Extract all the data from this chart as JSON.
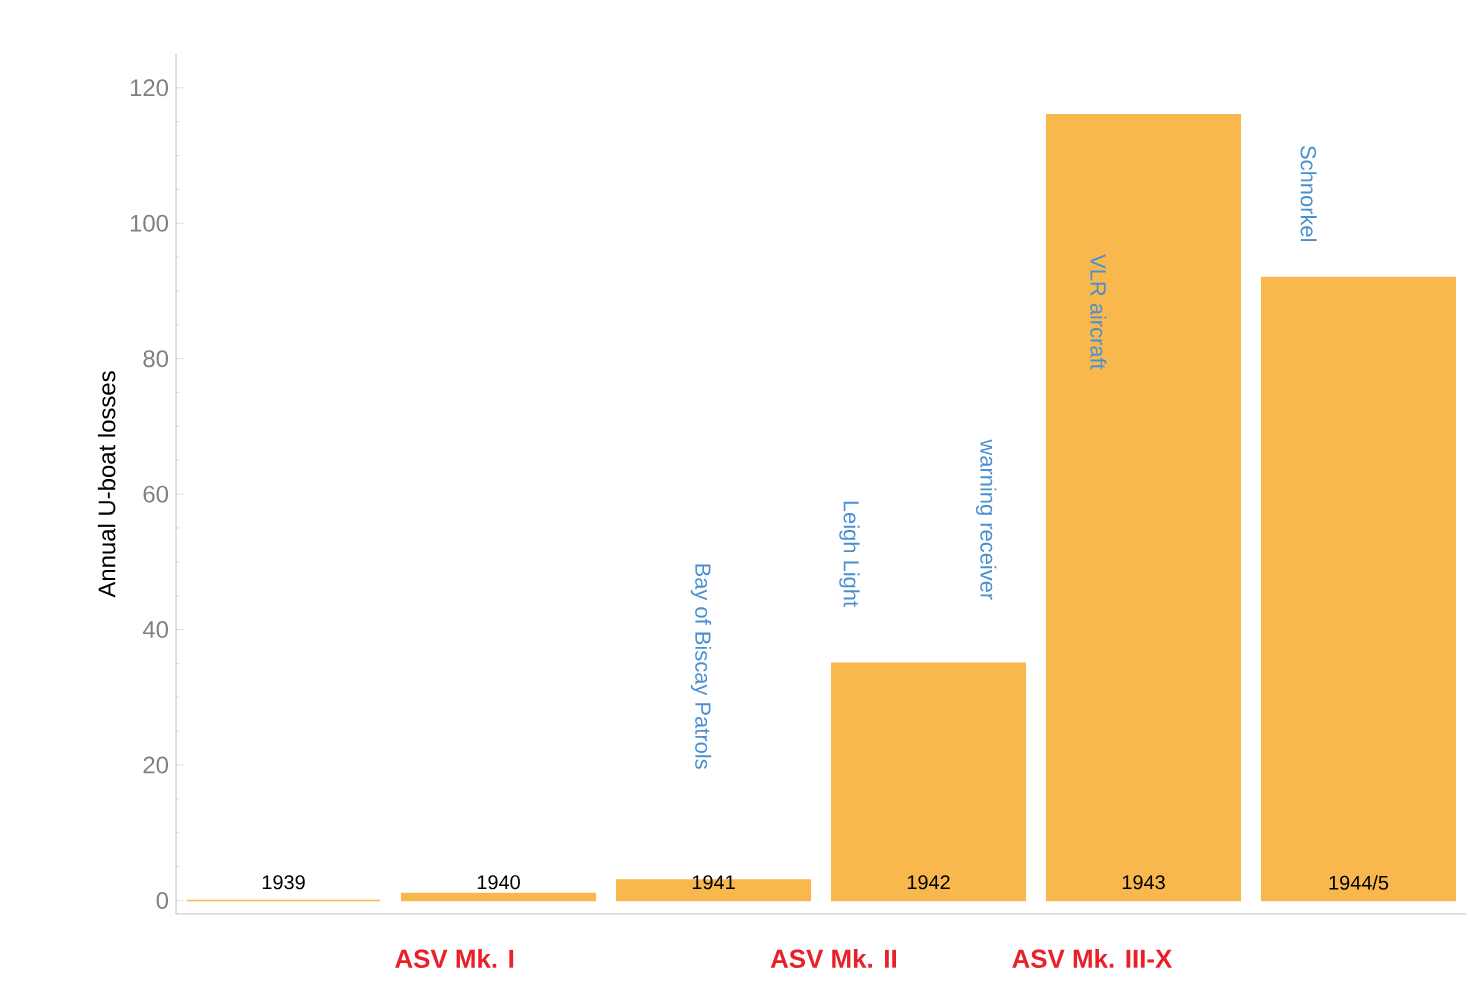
{
  "chart_data": {
    "type": "bar",
    "ylabel": "Annual U-boat losses",
    "categories": [
      "1939",
      "1940",
      "1941",
      "1942",
      "1943",
      "1944/5"
    ],
    "values": [
      0,
      1,
      3,
      35,
      116,
      92
    ],
    "color": "#f8b84e",
    "ylim": [
      -2,
      125
    ],
    "yticks": [
      0,
      20,
      40,
      60,
      80,
      100,
      120
    ],
    "grid": false,
    "annotations": [
      "Bay of Biscay Patrols",
      "Leigh Light",
      "warning receiver",
      "VLR aircraft",
      "Schnorkel",
      "ASV Mk. I",
      "ASV Mk. II",
      "ASV Mk. III-X"
    ]
  }
}
